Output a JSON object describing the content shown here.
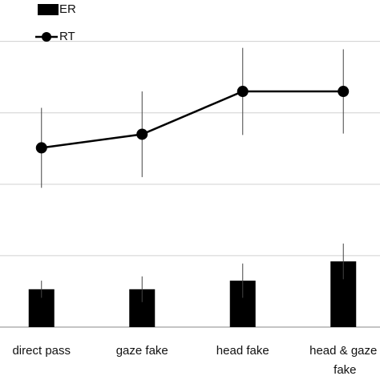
{
  "chart_data": {
    "type": "bar_line",
    "categories": [
      "direct pass",
      "gaze fake",
      "head fake",
      "head & gaze fake"
    ],
    "series": [
      {
        "name": "ER",
        "type": "bar",
        "color": "#000000",
        "values": [
          0.53,
          0.53,
          0.65,
          0.92
        ],
        "errors": [
          0.12,
          0.18,
          0.24,
          0.25
        ]
      },
      {
        "name": "RT",
        "type": "line",
        "color": "#000000",
        "values": [
          2.51,
          2.7,
          3.3,
          3.3
        ],
        "errors": [
          0.56,
          0.6,
          0.61,
          0.59
        ]
      }
    ],
    "ylim": [
      0,
      4.58
    ],
    "yticks": [
      0,
      1,
      2,
      3,
      4
    ],
    "grid": true
  }
}
